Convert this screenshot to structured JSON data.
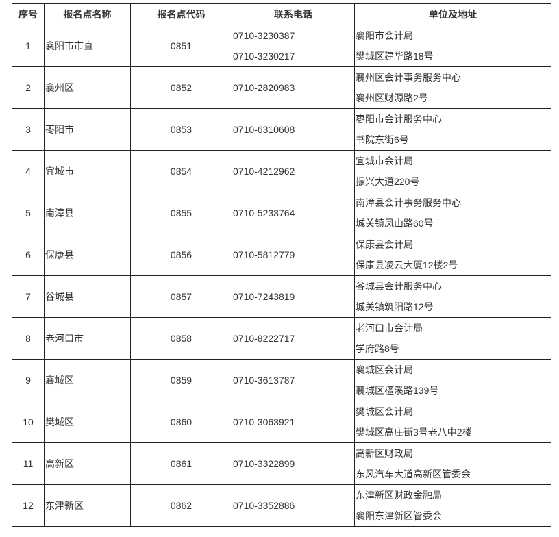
{
  "headers": [
    "序号",
    "报名点名称",
    "报名点代码",
    "联系电话",
    "单位及地址"
  ],
  "rows": [
    {
      "no": "1",
      "name": "襄阳市市直",
      "code": "0851",
      "phones": [
        "0710-3230387",
        "0710-3230217"
      ],
      "address": [
        "襄阳市会计局",
        "樊城区建华路18号"
      ]
    },
    {
      "no": "2",
      "name": "襄州区",
      "code": "0852",
      "phones": [
        "0710-2820983"
      ],
      "address": [
        "襄州区会计事务服务中心",
        "襄州区财源路2号"
      ]
    },
    {
      "no": "3",
      "name": "枣阳市",
      "code": "0853",
      "phones": [
        "0710-6310608"
      ],
      "address": [
        "枣阳市会计服务中心",
        "书院东街6号"
      ]
    },
    {
      "no": "4",
      "name": "宜城市",
      "code": "0854",
      "phones": [
        "0710-4212962"
      ],
      "address": [
        "宜城市会计局",
        "振兴大道220号"
      ]
    },
    {
      "no": "5",
      "name": "南漳县",
      "code": "0855",
      "phones": [
        "0710-5233764"
      ],
      "address": [
        "南漳县会计事务服务中心",
        "城关镇凤山路60号"
      ]
    },
    {
      "no": "6",
      "name": "保康县",
      "code": "0856",
      "phones": [
        "0710-5812779"
      ],
      "address": [
        "保康县会计局",
        "保康县凌云大厦12楼2号"
      ]
    },
    {
      "no": "7",
      "name": "谷城县",
      "code": "0857",
      "phones": [
        "0710-7243819"
      ],
      "address": [
        "谷城县会计服务中心",
        "城关镇筑阳路12号"
      ]
    },
    {
      "no": "8",
      "name": "老河口市",
      "code": "0858",
      "phones": [
        "0710-8222717"
      ],
      "address": [
        "老河口市会计局",
        "学府路8号"
      ]
    },
    {
      "no": "9",
      "name": "襄城区",
      "code": "0859",
      "phones": [
        "0710-3613787"
      ],
      "address": [
        "襄城区会计局",
        "襄城区檀溪路139号"
      ]
    },
    {
      "no": "10",
      "name": "樊城区",
      "code": "0860",
      "phones": [
        "0710-3063921"
      ],
      "address": [
        "樊城区会计局",
        "樊城区高庄街3号老八中2楼"
      ]
    },
    {
      "no": "11",
      "name": "高新区",
      "code": "0861",
      "phones": [
        "0710-3322899"
      ],
      "address": [
        "高新区财政局",
        "东风汽车大道高新区管委会"
      ]
    },
    {
      "no": "12",
      "name": "东津新区",
      "code": "0862",
      "phones": [
        "0710-3352886"
      ],
      "address": [
        "东津新区财政金融局",
        "襄阳东津新区管委会"
      ]
    }
  ]
}
